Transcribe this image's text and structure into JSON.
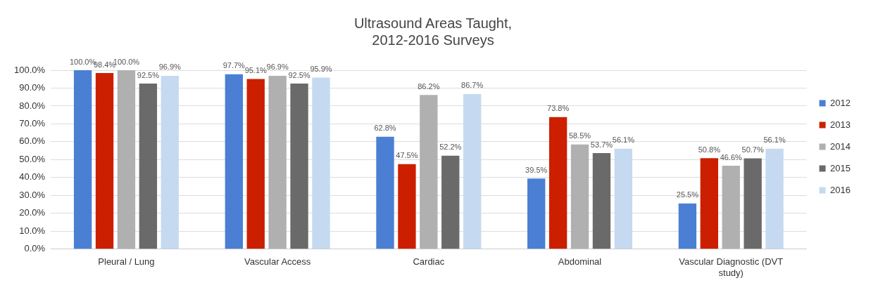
{
  "chart_data": {
    "type": "bar",
    "title": "Ultrasound Areas Taught,\n2012-2016 Surveys",
    "categories": [
      "Pleural / Lung",
      "Vascular Access",
      "Cardiac",
      "Abdominal",
      "Vascular Diagnostic (DVT study)"
    ],
    "series": [
      {
        "name": "2012",
        "color": "#4a7fd4",
        "values": [
          100.0,
          97.7,
          62.8,
          39.5,
          25.5
        ],
        "value_labels": [
          "100.0%",
          "97.7%",
          "62.8%",
          "39.5%",
          "25.5%"
        ]
      },
      {
        "name": "2013",
        "color": "#cc1f00",
        "values": [
          98.4,
          95.1,
          47.5,
          73.8,
          50.8
        ],
        "value_labels": [
          "98.4%",
          "95.1%",
          "47.5%",
          "73.8%",
          "50.8%"
        ]
      },
      {
        "name": "2014",
        "color": "#b0b0b0",
        "values": [
          100.0,
          96.9,
          86.2,
          58.5,
          46.6
        ],
        "value_labels": [
          "100.0%",
          "96.9%",
          "86.2%",
          "58.5%",
          "46.6%"
        ]
      },
      {
        "name": "2015",
        "color": "#6a6a6a",
        "values": [
          92.5,
          92.5,
          52.2,
          53.7,
          50.7
        ],
        "value_labels": [
          "92.5%",
          "92.5%",
          "52.2%",
          "53.7%",
          "50.7%"
        ]
      },
      {
        "name": "2016",
        "color": "#c5daf0",
        "values": [
          96.9,
          95.9,
          86.7,
          56.1,
          56.1
        ],
        "value_labels": [
          "96.9%",
          "95.9%",
          "86.7%",
          "56.1%",
          "56.1%"
        ]
      }
    ],
    "ylim": [
      0,
      100
    ],
    "yticks": [
      {
        "value": 0,
        "label": "0.0%"
      },
      {
        "value": 10,
        "label": "10.0%"
      },
      {
        "value": 20,
        "label": "20.0%"
      },
      {
        "value": 30,
        "label": "30.0%"
      },
      {
        "value": 40,
        "label": "40.0%"
      },
      {
        "value": 50,
        "label": "50.0%"
      },
      {
        "value": 60,
        "label": "60.0%"
      },
      {
        "value": 70,
        "label": "70.0%"
      },
      {
        "value": 80,
        "label": "80.0%"
      },
      {
        "value": 90,
        "label": "90.0%"
      },
      {
        "value": 100,
        "label": "100.0%"
      }
    ],
    "grid": "y",
    "legend": "right"
  }
}
